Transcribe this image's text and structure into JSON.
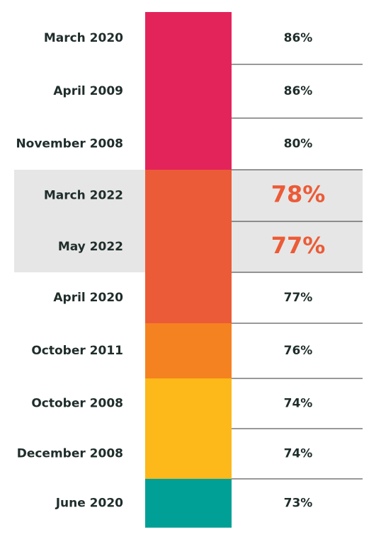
{
  "table": {
    "rows": [
      {
        "label": "March 2020",
        "value": "86%",
        "color": "#e3245a",
        "highlight": false
      },
      {
        "label": "April 2009",
        "value": "86%",
        "color": "#e3245a",
        "highlight": false
      },
      {
        "label": "November 2008",
        "value": "80%",
        "color": "#e3245a",
        "highlight": false
      },
      {
        "label": "March 2022",
        "value": "78%",
        "color": "#ec5b37",
        "highlight": true
      },
      {
        "label": "May 2022",
        "value": "77%",
        "color": "#ec5b37",
        "highlight": true
      },
      {
        "label": "April 2020",
        "value": "77%",
        "color": "#ec5b37",
        "highlight": false
      },
      {
        "label": "October 2011",
        "value": "76%",
        "color": "#f58220",
        "highlight": false
      },
      {
        "label": "October 2008",
        "value": "74%",
        "color": "#fdb81a",
        "highlight": false
      },
      {
        "label": "December 2008",
        "value": "74%",
        "color": "#fdb81a",
        "highlight": false
      },
      {
        "label": "June 2020",
        "value": "73%",
        "color": "#00a096",
        "highlight": false
      }
    ]
  }
}
